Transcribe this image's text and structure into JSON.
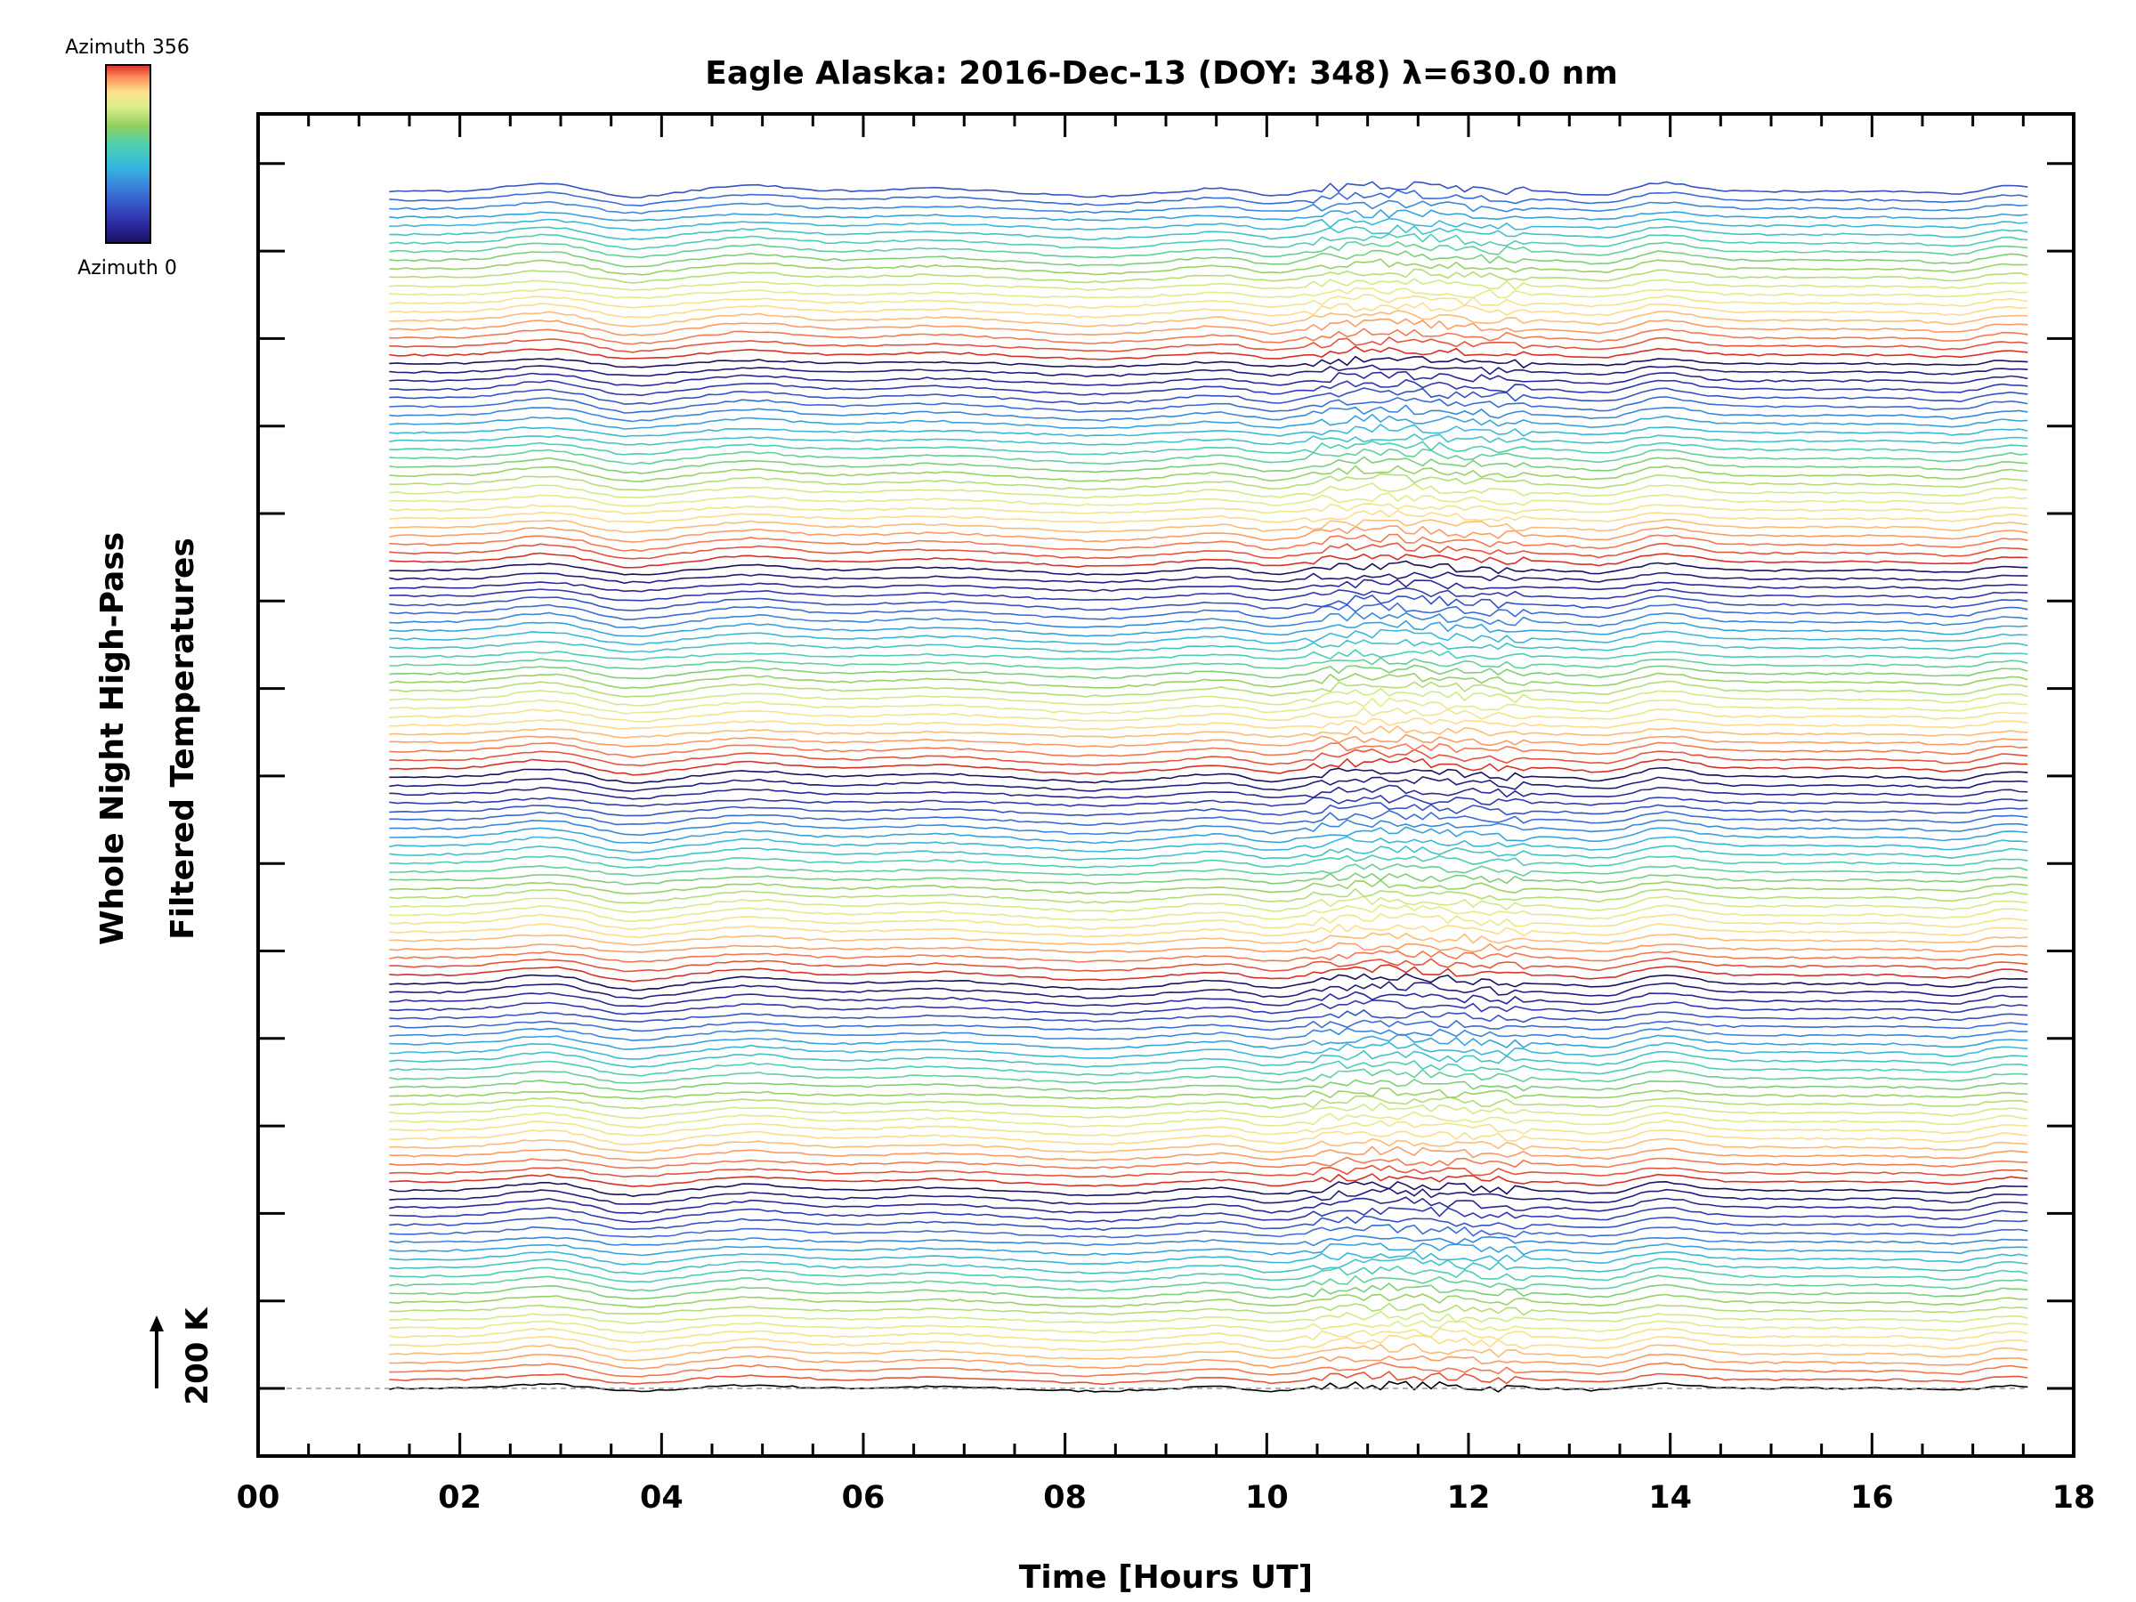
{
  "chart_data": {
    "type": "line",
    "title": "Eagle Alaska: 2016-Dec-13 (DOY: 348) λ=630.0 nm",
    "xlabel": "Time [Hours UT]",
    "ylabel_line1": "Whole Night High-Pass",
    "ylabel_line2": "Filtered Temperatures",
    "xlim": [
      0,
      18
    ],
    "x_ticks": [
      "00",
      "02",
      "04",
      "06",
      "08",
      "10",
      "12",
      "14",
      "16",
      "18"
    ],
    "grid": false,
    "colorbar": {
      "top_label": "Azimuth 356",
      "bottom_label": "Azimuth 0",
      "colors": [
        "#d73027",
        "#fc8d59",
        "#fee08b",
        "#d9ef8b",
        "#91cf60",
        "#4dd0b0",
        "#35b5e0",
        "#3a6fd8",
        "#2f2fa8",
        "#1a1060"
      ]
    },
    "scale_bar_label": "200 K",
    "series_count": 140,
    "x_start_hours": 1.3,
    "x_end_hours": 17.55,
    "baseline_color": "#000000",
    "accent_colors": {
      "azimuth_low": "#1a1060",
      "azimuth_high": "#d73027"
    }
  }
}
